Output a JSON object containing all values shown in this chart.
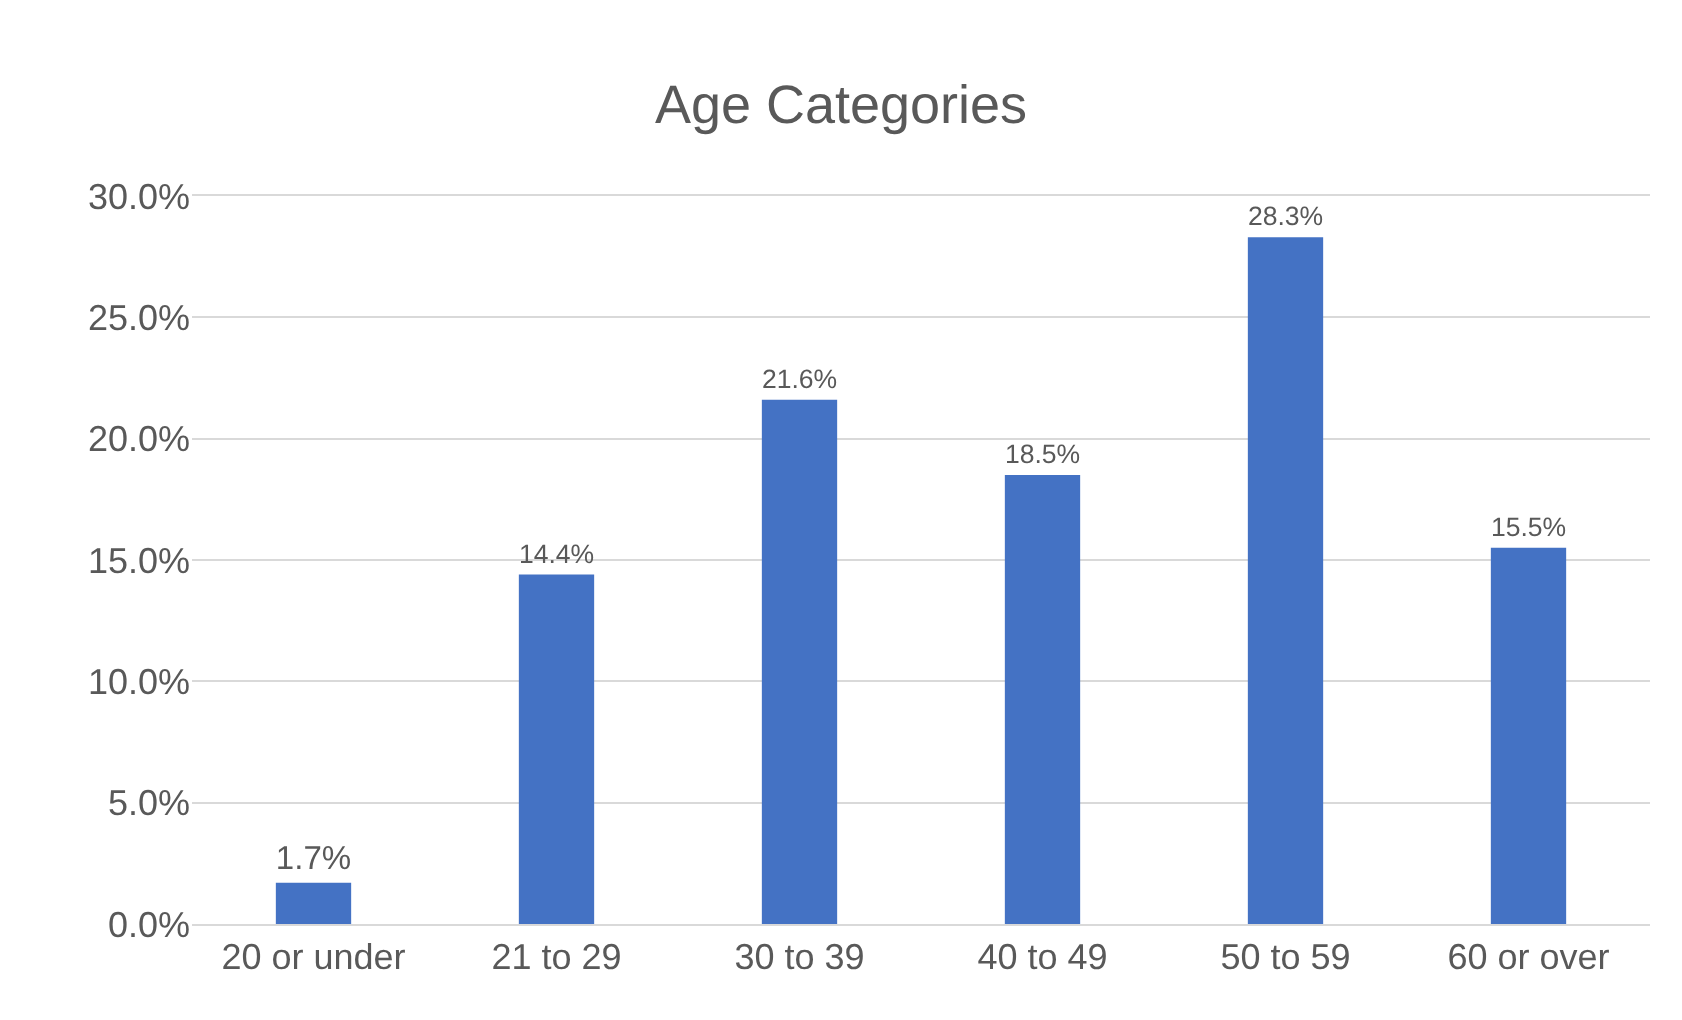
{
  "chart_data": {
    "type": "bar",
    "title": "Age Categories",
    "categories": [
      "20 or under",
      "21 to 29",
      "30 to 39",
      "40 to 49",
      "50 to 59",
      "60 or over"
    ],
    "values": [
      1.7,
      14.4,
      21.6,
      18.5,
      28.3,
      15.5
    ],
    "value_labels": [
      "1.7%",
      "14.4%",
      "21.6%",
      "18.5%",
      "28.3%",
      "15.5%"
    ],
    "color": "#4472c4",
    "ylim": [
      0,
      30
    ],
    "yticks": [
      {
        "value": 0,
        "label": "0.0%"
      },
      {
        "value": 5,
        "label": "5.0%"
      },
      {
        "value": 10,
        "label": "10.0%"
      },
      {
        "value": 15,
        "label": "15.0%"
      },
      {
        "value": 20,
        "label": "20.0%"
      },
      {
        "value": 25,
        "label": "25.0%"
      },
      {
        "value": 30,
        "label": "30.0%"
      }
    ],
    "grid": "y",
    "legend": false
  }
}
